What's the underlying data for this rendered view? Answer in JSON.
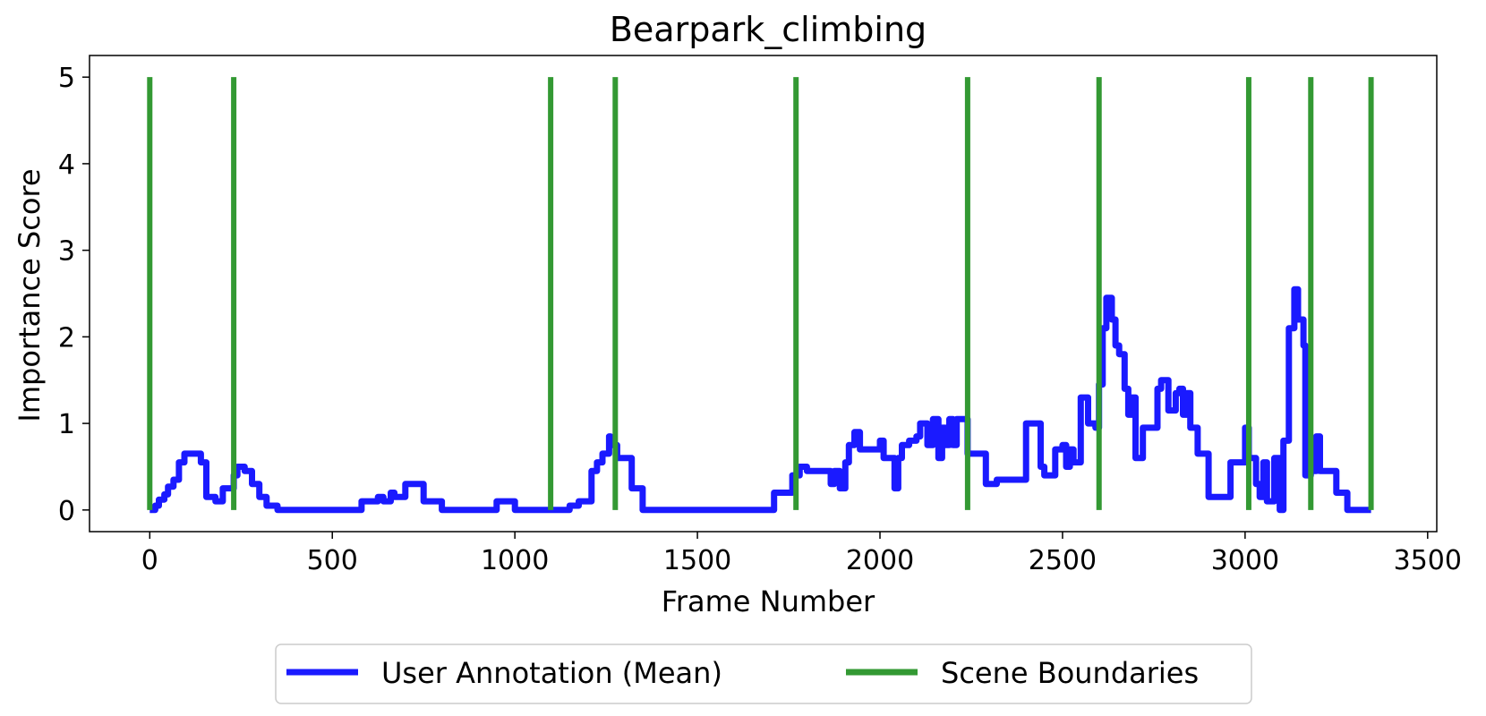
{
  "chart_data": {
    "type": "line",
    "title": "Bearpark_climbing",
    "xlabel": "Frame Number",
    "ylabel": "Importance Score",
    "xlim": [
      -165,
      3525
    ],
    "ylim": [
      -0.25,
      5.25
    ],
    "xticks": [
      0,
      500,
      1000,
      1500,
      2000,
      2500,
      3000,
      3500
    ],
    "yticks": [
      0,
      1,
      2,
      3,
      4,
      5
    ],
    "grid": false,
    "legend": {
      "placement": "bottom-center, below the plot"
    },
    "colors": {
      "annotation": "#1a1aff",
      "boundaries": "#339933"
    },
    "series": [
      {
        "name": "User Annotation (Mean)",
        "kind": "step-line",
        "x": [
          0,
          15,
          25,
          40,
          50,
          65,
          80,
          95,
          140,
          155,
          180,
          200,
          230,
          240,
          260,
          280,
          300,
          320,
          350,
          400,
          450,
          500,
          550,
          580,
          600,
          625,
          640,
          660,
          670,
          700,
          750,
          800,
          850,
          900,
          950,
          1000,
          1050,
          1100,
          1150,
          1175,
          1210,
          1225,
          1240,
          1258,
          1262,
          1280,
          1320,
          1350,
          1400,
          1450,
          1500,
          1550,
          1600,
          1650,
          1700,
          1710,
          1760,
          1780,
          1800,
          1850,
          1865,
          1875,
          1890,
          1905,
          1915,
          1930,
          1945,
          1960,
          2000,
          2010,
          2040,
          2050,
          2060,
          2080,
          2100,
          2110,
          2130,
          2145,
          2160,
          2170,
          2180,
          2190,
          2200,
          2210,
          2240,
          2260,
          2290,
          2320,
          2380,
          2400,
          2420,
          2440,
          2450,
          2480,
          2500,
          2510,
          2520,
          2530,
          2550,
          2570,
          2590,
          2600,
          2610,
          2620,
          2635,
          2645,
          2655,
          2670,
          2680,
          2690,
          2700,
          2720,
          2740,
          2760,
          2770,
          2790,
          2810,
          2820,
          2830,
          2840,
          2850,
          2870,
          2900,
          2940,
          2950,
          2960,
          3000,
          3010,
          3020,
          3030,
          3040,
          3050,
          3060,
          3080,
          3095,
          3105,
          3120,
          3135,
          3145,
          3160,
          3165,
          3180,
          3195,
          3205,
          3225,
          3250,
          3280,
          3345
        ],
        "y": [
          0,
          0.05,
          0.12,
          0.18,
          0.27,
          0.35,
          0.55,
          0.65,
          0.55,
          0.15,
          0.1,
          0.25,
          0.4,
          0.5,
          0.45,
          0.3,
          0.15,
          0.05,
          0,
          0,
          0,
          0,
          0,
          0.1,
          0.1,
          0.15,
          0.1,
          0.2,
          0.15,
          0.3,
          0.1,
          0,
          0,
          0,
          0.1,
          0,
          0,
          0,
          0.05,
          0.1,
          0.45,
          0.55,
          0.65,
          0.85,
          0.75,
          0.6,
          0.25,
          0,
          0,
          0,
          0,
          0,
          0,
          0,
          0,
          0.2,
          0.4,
          0.5,
          0.45,
          0.45,
          0.3,
          0.45,
          0.25,
          0.55,
          0.75,
          0.9,
          0.7,
          0.7,
          0.8,
          0.6,
          0.25,
          0.6,
          0.75,
          0.8,
          0.85,
          1,
          0.75,
          1.05,
          0.6,
          0.95,
          0.75,
          1.05,
          0.75,
          1.05,
          0.65,
          0.65,
          0.3,
          0.35,
          0.35,
          1,
          1,
          0.5,
          0.4,
          0.7,
          0.75,
          0.5,
          0.7,
          0.55,
          1.3,
          1,
          0.95,
          1.45,
          2.1,
          2.45,
          2.2,
          1.9,
          1.8,
          1.4,
          1.1,
          1.3,
          0.6,
          0.95,
          0.95,
          1.4,
          1.5,
          1.15,
          1.35,
          1.4,
          1.1,
          1.35,
          0.95,
          0.65,
          0.15,
          0.15,
          0.15,
          0.55,
          0.95,
          0.6,
          0.6,
          0.3,
          0.15,
          0.55,
          0.1,
          0.6,
          0,
          0.8,
          2.1,
          2.55,
          2.2,
          1.9,
          0.4,
          0.45,
          0.85,
          0.45,
          0.45,
          0.2,
          0,
          0
        ]
      },
      {
        "name": "Scene Boundaries",
        "kind": "vertical-lines",
        "x": [
          0,
          230,
          1098,
          1275,
          1770,
          2240,
          2600,
          3010,
          3180,
          3345
        ],
        "y_range": [
          0,
          5
        ]
      }
    ]
  },
  "legend_items": [
    {
      "label": "User Annotation (Mean)",
      "color": "#1a1aff"
    },
    {
      "label": "Scene Boundaries",
      "color": "#339933"
    }
  ]
}
